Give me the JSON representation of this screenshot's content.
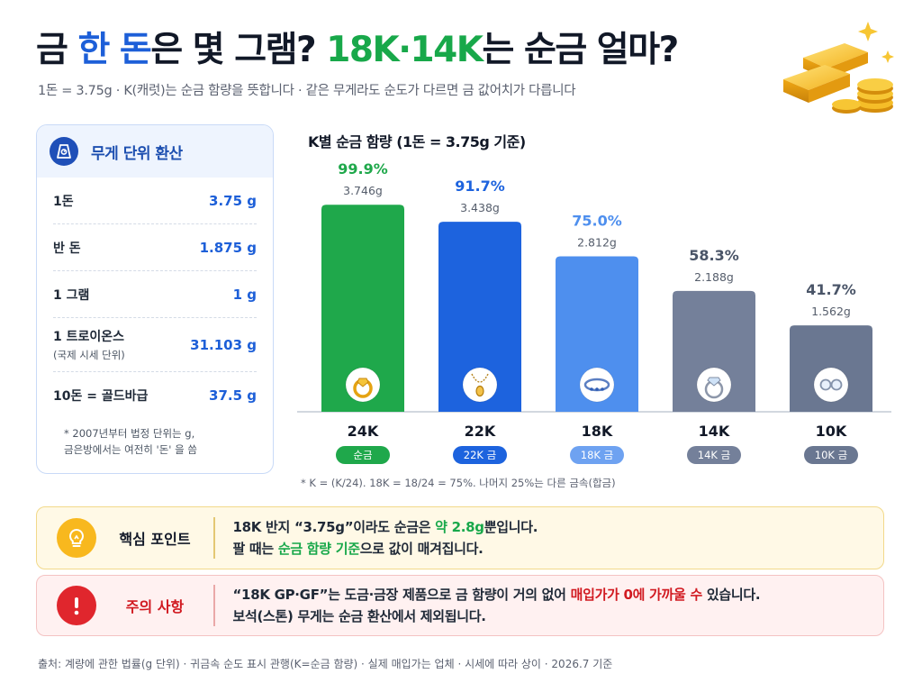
{
  "header": {
    "title_p1": "금 ",
    "title_p2": "한 돈",
    "title_p3": "은 몇 그램? ",
    "title_p4": "18K·14K",
    "title_p5": "는 순금 얼마?",
    "subtitle": "1돈 = 3.75g · K(캐럿)는 순금 함량을 뜻합니다 · 같은 무게라도 순도가 다르면 금 값어치가 다릅니다"
  },
  "weight_panel": {
    "title": "무게 단위 환산",
    "icon": "scale-icon",
    "rows": [
      {
        "label": "1돈",
        "sub": "",
        "value": "3.75 g"
      },
      {
        "label": "반 돈",
        "sub": "",
        "value": "1.875 g"
      },
      {
        "label": "1 그램",
        "sub": "",
        "value": "1 g"
      },
      {
        "label": "1 트로이온스",
        "sub": "(국제 시세 단위)",
        "value": "31.103 g"
      },
      {
        "label": "10돈 = 골드바급",
        "sub": "",
        "value": "37.5 g"
      }
    ],
    "note_line1": "* 2007년부터 법정 단위는 g,",
    "note_line2": "금은방에서는 여전히 '돈' 을 씀"
  },
  "chart_data": {
    "type": "bar",
    "title": "K별 순금 함량 (1돈 = 3.75g 기준)",
    "categories": [
      "24K",
      "22K",
      "18K",
      "14K",
      "10K"
    ],
    "values": [
      99.9,
      91.7,
      75.0,
      58.3,
      41.7
    ],
    "value_labels": [
      "99.9%",
      "91.7%",
      "75.0%",
      "58.3%",
      "41.7%"
    ],
    "gram_labels": [
      "3.746g",
      "3.438g",
      "2.812g",
      "2.188g",
      "1.562g"
    ],
    "badges": [
      "순금",
      "22K 금",
      "18K 금",
      "14K 금",
      "10K 금"
    ],
    "icons": [
      "ring-icon",
      "necklace-icon",
      "band-ring-icon",
      "diamond-ring-icon",
      "glasses-icon"
    ],
    "bar_colors": [
      "#1fa84b",
      "#1d63de",
      "#4e8fee",
      "#74809a",
      "#6a7791"
    ],
    "label_colors": [
      "#1fa84b",
      "#1d63de",
      "#4e8fee",
      "#4a5568",
      "#4a5568"
    ],
    "badge_colors": [
      "#1fa84b",
      "#1d63de",
      "#6ea2f1",
      "#74809a",
      "#6a7791"
    ],
    "ylim": [
      0,
      100
    ],
    "note": "* K = (K/24). 18K = 18/24 = 75%. 나머지 25%는 다른 금속(합금)"
  },
  "key_point": {
    "label": "핵심 포인트",
    "icon": "lightbulb-icon",
    "line1_a": "18K 반지 “3.75g”이라도 순금은 ",
    "line1_b": "약 2.8g",
    "line1_c": "뿐입니다.",
    "line2_a": "팔 때는 ",
    "line2_b": "순금 함량 기준",
    "line2_c": "으로 값이 매겨집니다."
  },
  "warning": {
    "label": "주의 사항",
    "icon": "exclamation-icon",
    "line1_a": "“18K GP·GF”는 도금·금장 제품으로 금 함량이 거의 없어 ",
    "line1_b": "매입가가 0에 가까울 수",
    "line1_c": " 있습니다.",
    "line2": "보석(스톤) 무게는 순금 환산에서 제외됩니다."
  },
  "footer": "출처: 계량에 관한 법률(g 단위) · 귀금속 순도 표시 관행(K=순금 함량) · 실제 매입가는 업체 · 시세에 따라 상이 · 2026.7 기준",
  "colors": {
    "accent_blue": "#1d5fd8",
    "accent_green": "#18a84a",
    "warning_red": "#d11a21",
    "gold": "#f3b21a"
  }
}
